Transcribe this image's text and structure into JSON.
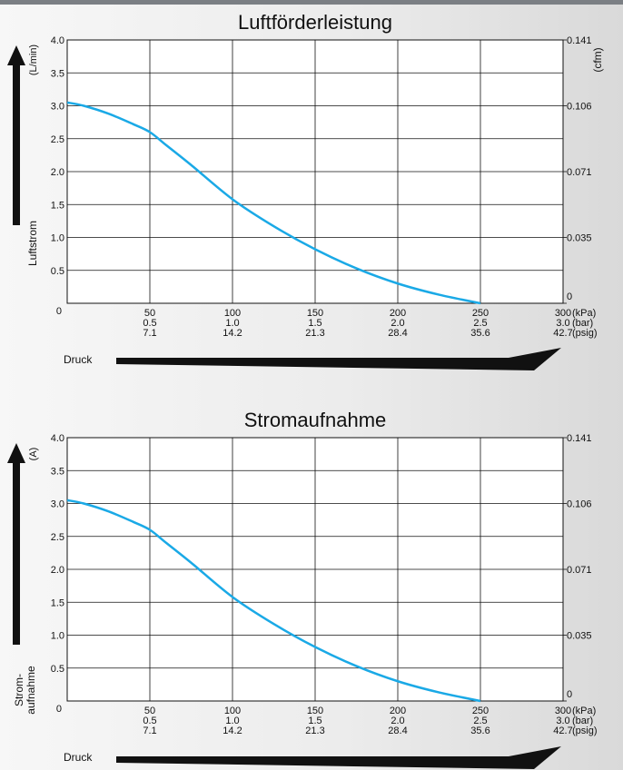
{
  "chart_data": [
    {
      "type": "line",
      "title": "Luftförderleistung",
      "ylabel": "Luftstrom",
      "y_unit": "(L/min)",
      "y2_unit": "(cfm)",
      "xlabel": "Druck",
      "ylim": [
        0,
        4.0
      ],
      "xlim": [
        0,
        300
      ],
      "y_ticks": [
        "4.0",
        "3.5",
        "3.0",
        "2.5",
        "2.0",
        "1.5",
        "1.0",
        "0.5",
        "0"
      ],
      "y2_ticks": [
        "0.141",
        "0.106",
        "0.071",
        "0.035",
        "0"
      ],
      "y2_tick_values": [
        4.0,
        3.0,
        2.0,
        1.0,
        0
      ],
      "x_ticks_kpa": [
        "50",
        "100",
        "150",
        "200",
        "250",
        "300"
      ],
      "x_ticks_bar": [
        "0.5",
        "1.0",
        "1.5",
        "2.0",
        "2.5",
        "3.0"
      ],
      "x_ticks_psig": [
        "7.1",
        "14.2",
        "21.3",
        "28.4",
        "35.6",
        "42.7"
      ],
      "x_unit_kpa": "(kPa)",
      "x_unit_bar": "(bar)",
      "x_unit_psig": "(psig)",
      "line_color": "#1aa9e6",
      "series": [
        {
          "x": [
            0,
            10,
            25,
            40,
            50,
            60,
            75,
            100,
            125,
            150,
            175,
            200,
            225,
            250
          ],
          "y": [
            3.05,
            3.0,
            2.88,
            2.72,
            2.6,
            2.4,
            2.1,
            1.58,
            1.17,
            0.82,
            0.53,
            0.3,
            0.13,
            0.0
          ]
        }
      ]
    },
    {
      "type": "line",
      "title": "Stromaufnahme",
      "ylabel": "Strom-\naufnahme",
      "ylabel_lines": [
        "Strom-",
        "aufnahme"
      ],
      "y_unit": "(A)",
      "xlabel": "Druck",
      "ylim": [
        0,
        4.0
      ],
      "xlim": [
        0,
        300
      ],
      "y_ticks": [
        "4.0",
        "3.5",
        "3.0",
        "2.5",
        "2.0",
        "1.5",
        "1.0",
        "0.5",
        "0"
      ],
      "y2_ticks": [
        "0.141",
        "0.106",
        "0.071",
        "0.035",
        "0"
      ],
      "y2_tick_values": [
        4.0,
        3.0,
        2.0,
        1.0,
        0
      ],
      "x_ticks_kpa": [
        "50",
        "100",
        "150",
        "200",
        "250",
        "300"
      ],
      "x_ticks_bar": [
        "0.5",
        "1.0",
        "1.5",
        "2.0",
        "2.5",
        "3.0"
      ],
      "x_ticks_psig": [
        "7.1",
        "14.2",
        "21.3",
        "28.4",
        "35.6",
        "42.7"
      ],
      "x_unit_kpa": "(kPa)",
      "x_unit_bar": "(bar)",
      "x_unit_psig": "(psig)",
      "line_color": "#1aa9e6",
      "series": [
        {
          "x": [
            0,
            10,
            25,
            40,
            50,
            60,
            75,
            100,
            125,
            150,
            175,
            200,
            225,
            250
          ],
          "y": [
            3.05,
            3.0,
            2.88,
            2.72,
            2.6,
            2.4,
            2.1,
            1.58,
            1.17,
            0.82,
            0.53,
            0.3,
            0.13,
            0.0
          ]
        }
      ]
    }
  ]
}
